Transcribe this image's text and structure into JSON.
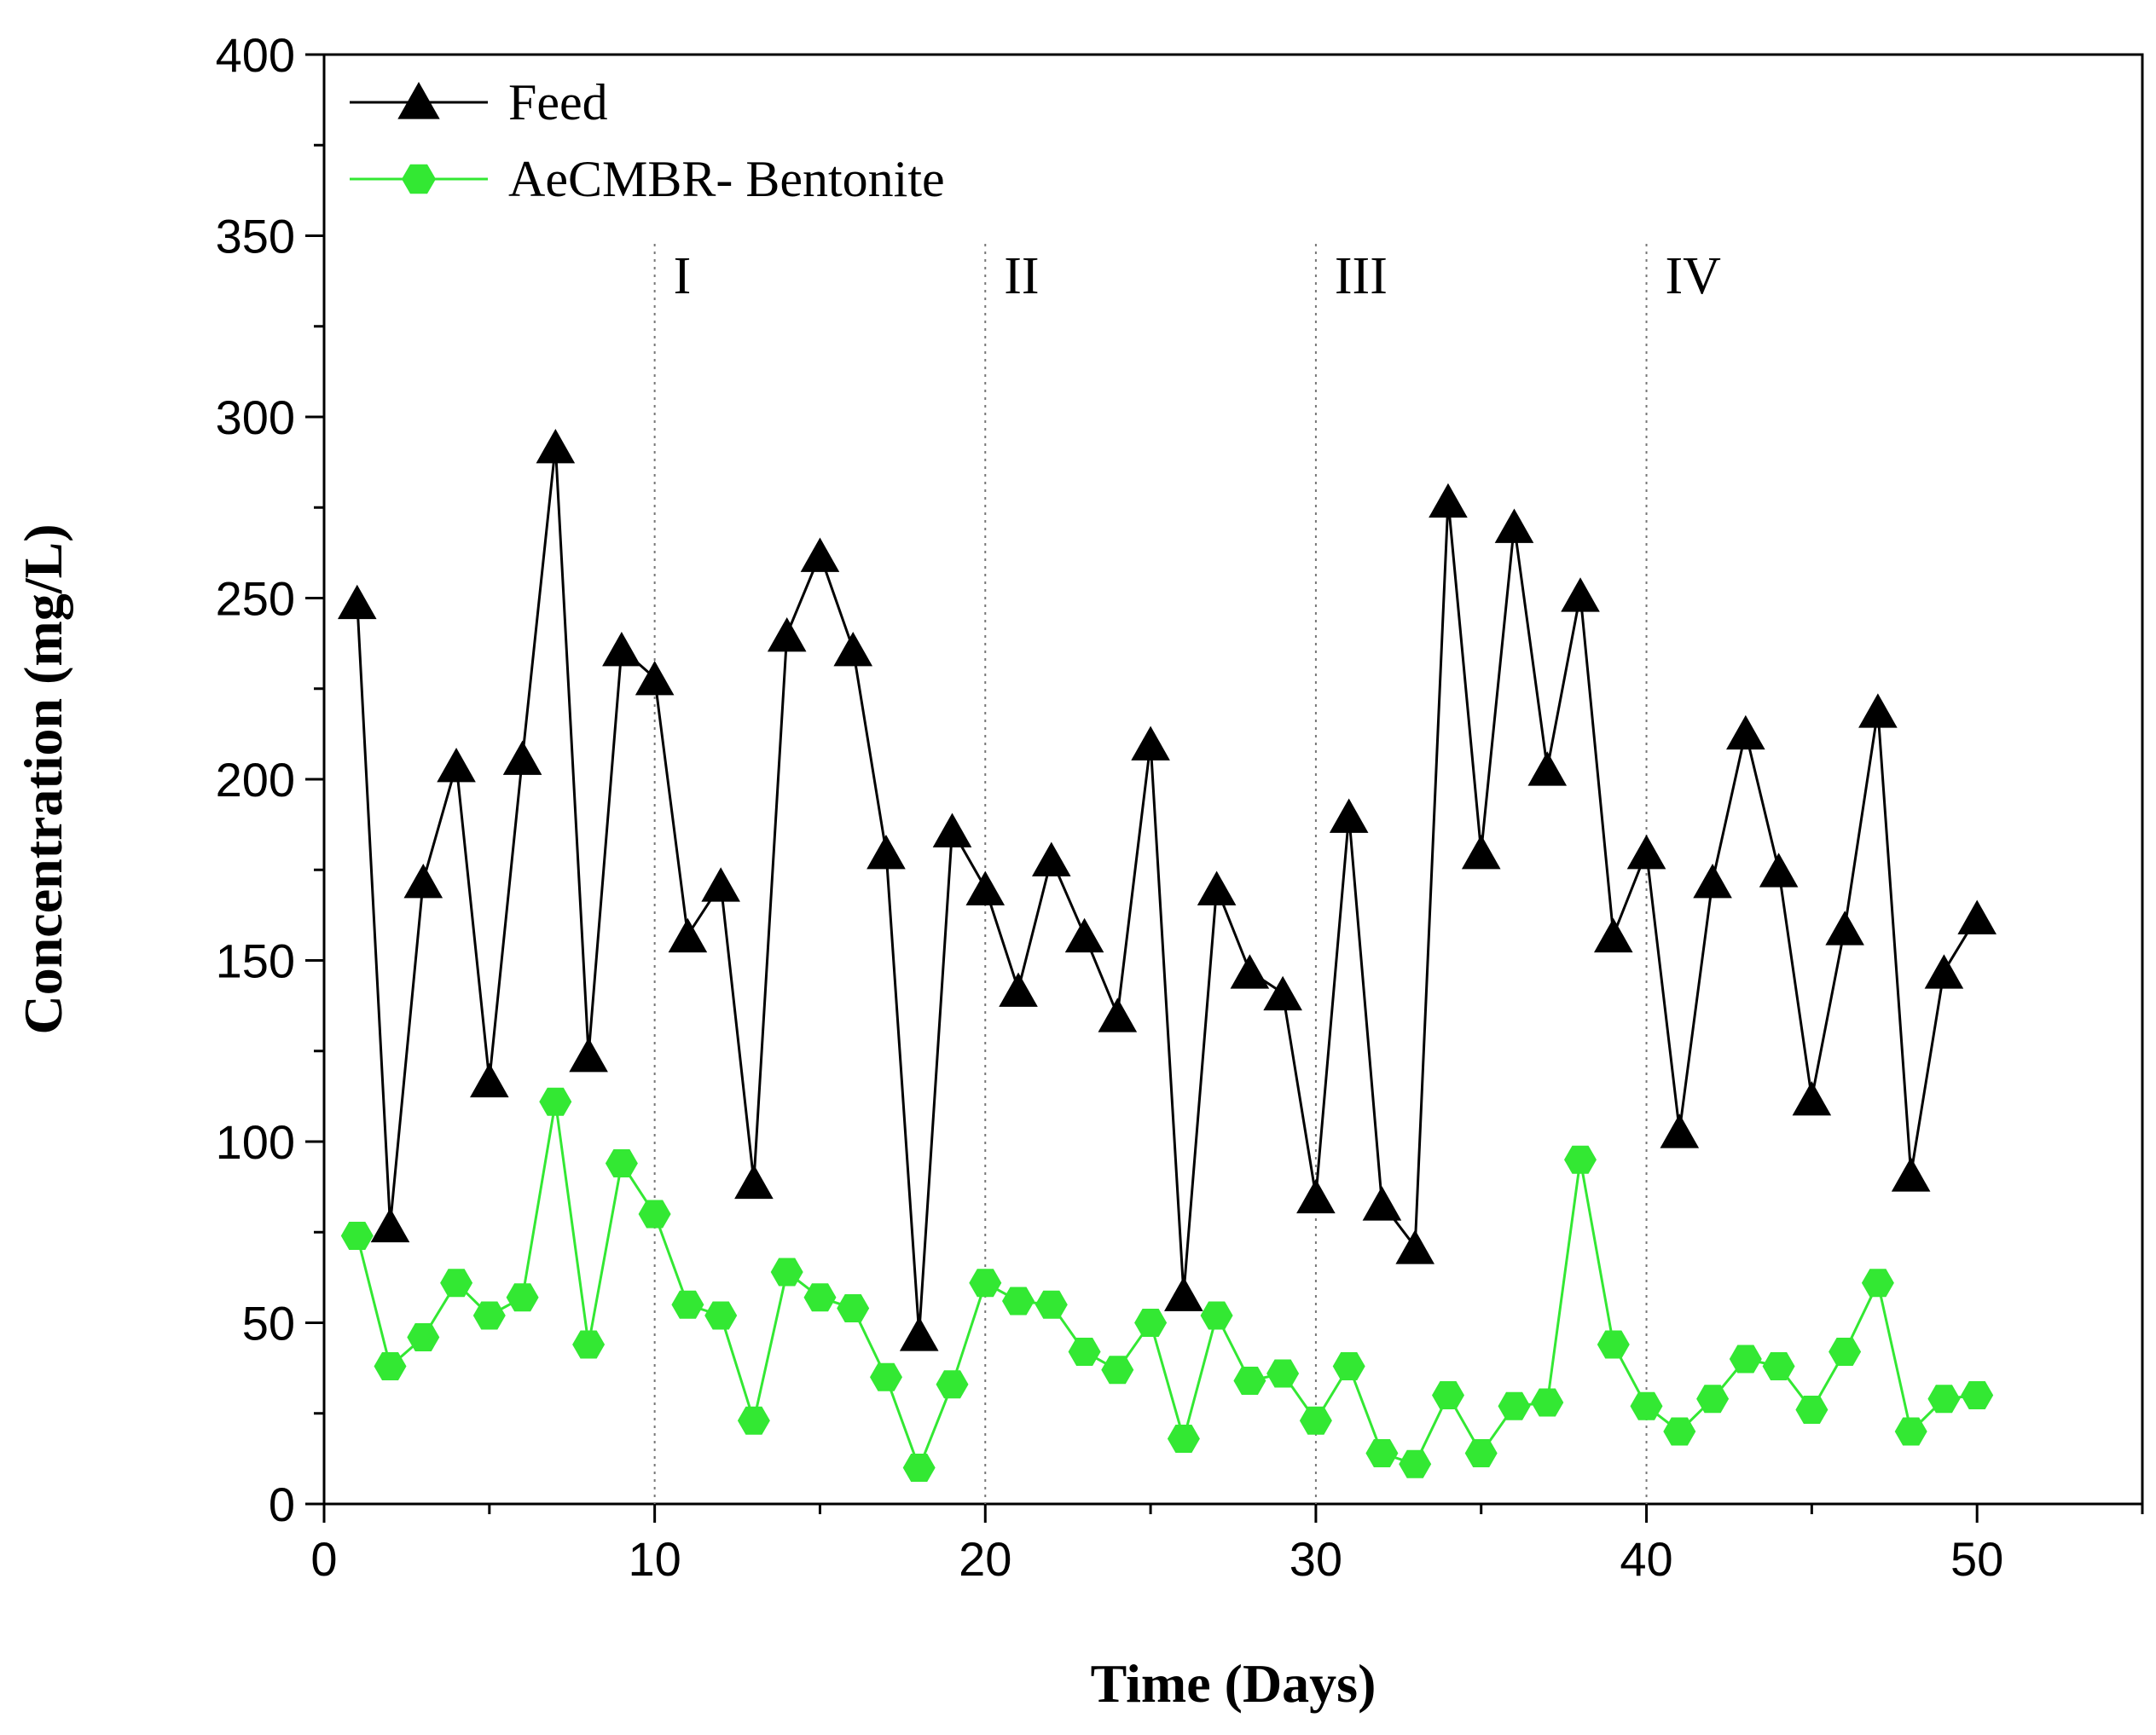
{
  "chart_data": {
    "type": "line",
    "title": "",
    "xlabel": "Time (Days)",
    "ylabel": "Concentration (mg/L)",
    "xlim": [
      0,
      55
    ],
    "ylim": [
      0,
      400
    ],
    "xticks": [
      0,
      10,
      20,
      30,
      40,
      50
    ],
    "yticks": [
      0,
      50,
      100,
      150,
      200,
      250,
      300,
      350,
      400
    ],
    "grid": false,
    "legend_position": "top-left",
    "phases": [
      {
        "label": "I",
        "x": 10
      },
      {
        "label": "II",
        "x": 20
      },
      {
        "label": "III",
        "x": 30
      },
      {
        "label": "IV",
        "x": 40
      }
    ],
    "x": [
      1,
      2,
      3,
      4,
      5,
      6,
      7,
      8,
      9,
      10,
      11,
      12,
      13,
      14,
      15,
      16,
      17,
      18,
      19,
      20,
      21,
      22,
      23,
      24,
      25,
      26,
      27,
      28,
      29,
      30,
      31,
      32,
      33,
      34,
      35,
      36,
      37,
      38,
      39,
      40,
      41,
      42,
      43,
      44,
      45,
      46,
      47,
      48,
      49,
      50
    ],
    "series": [
      {
        "name": "Feed",
        "color": "#000000",
        "marker": "triangle",
        "values": [
          249,
          77,
          172,
          204,
          117,
          206,
          292,
          124,
          236,
          228,
          157,
          171,
          89,
          240,
          262,
          236,
          180,
          47,
          186,
          170,
          142,
          178,
          157,
          135,
          210,
          58,
          170,
          147,
          141,
          85,
          190,
          83,
          71,
          277,
          180,
          270,
          203,
          251,
          157,
          180,
          103,
          172,
          213,
          175,
          112,
          159,
          219,
          91,
          147,
          162
        ]
      },
      {
        "name": "AeCMBR- Bentonite",
        "color": "#33e833",
        "marker": "hexagon",
        "values": [
          74,
          38,
          46,
          61,
          52,
          57,
          111,
          44,
          94,
          80,
          55,
          52,
          23,
          64,
          57,
          54,
          35,
          10,
          33,
          61,
          56,
          55,
          42,
          37,
          50,
          18,
          52,
          34,
          36,
          23,
          38,
          14,
          11,
          30,
          14,
          27,
          28,
          95,
          44,
          27,
          20,
          29,
          40,
          38,
          26,
          42,
          61,
          20,
          29,
          30
        ]
      }
    ]
  }
}
